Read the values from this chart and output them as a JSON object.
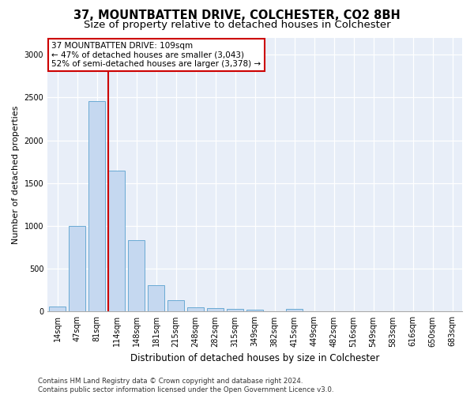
{
  "title": "37, MOUNTBATTEN DRIVE, COLCHESTER, CO2 8BH",
  "subtitle": "Size of property relative to detached houses in Colchester",
  "xlabel": "Distribution of detached houses by size in Colchester",
  "ylabel": "Number of detached properties",
  "categories": [
    "14sqm",
    "47sqm",
    "81sqm",
    "114sqm",
    "148sqm",
    "181sqm",
    "215sqm",
    "248sqm",
    "282sqm",
    "315sqm",
    "349sqm",
    "382sqm",
    "415sqm",
    "449sqm",
    "482sqm",
    "516sqm",
    "549sqm",
    "583sqm",
    "616sqm",
    "650sqm",
    "683sqm"
  ],
  "values": [
    55,
    1000,
    2460,
    1650,
    830,
    305,
    130,
    50,
    40,
    35,
    20,
    0,
    30,
    0,
    0,
    0,
    0,
    0,
    0,
    0,
    0
  ],
  "bar_color": "#c5d8f0",
  "bar_edge_color": "#6aaad4",
  "vline_color": "#cc0000",
  "vline_x_index": 3,
  "annotation_text": "37 MOUNTBATTEN DRIVE: 109sqm\n← 47% of detached houses are smaller (3,043)\n52% of semi-detached houses are larger (3,378) →",
  "annotation_box_facecolor": "#ffffff",
  "annotation_box_edgecolor": "#cc0000",
  "ylim": [
    0,
    3200
  ],
  "yticks": [
    0,
    500,
    1000,
    1500,
    2000,
    2500,
    3000
  ],
  "footer": "Contains HM Land Registry data © Crown copyright and database right 2024.\nContains public sector information licensed under the Open Government Licence v3.0.",
  "background_color": "#ffffff",
  "plot_bg_color": "#e8eef8",
  "title_fontsize": 10.5,
  "subtitle_fontsize": 9.5,
  "xlabel_fontsize": 8.5,
  "ylabel_fontsize": 8,
  "tick_fontsize": 7,
  "annotation_fontsize": 7.5,
  "footer_fontsize": 6.2
}
